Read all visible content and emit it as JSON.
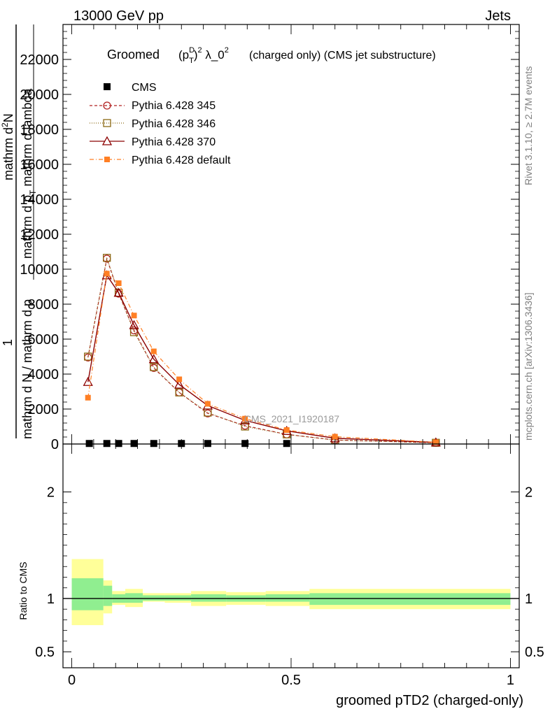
{
  "header": {
    "left": "13000 GeV pp",
    "right": "Jets"
  },
  "side_labels": {
    "rivet": "Rivet 3.1.10, ≥ 2.7M events",
    "mcplots": "mcplots.cern.ch [arXiv:1306.3436]"
  },
  "watermark": "CMS_2021_I1920187",
  "colors": {
    "data": "#000000",
    "p345": "#b22222",
    "p346": "#8b6914",
    "p370": "#8b0000",
    "pdefault": "#ff7f24",
    "band_inner": "#90ee90",
    "band_outer": "#ffff99"
  },
  "chart_data": [
    {
      "type": "line",
      "panel": "main",
      "title_prefix": "Groomed",
      "title_formula": "(p_T^D)^2 λ_0^2",
      "title_suffix": "(charged only) (CMS jet substructure)",
      "ylabel": "1 / mathrm d N / mathrm d p_T  mathrm d^2N / mathrm d p_T mathrm d lambda",
      "ylabel_parts": {
        "numerator_top": "mathrm d",
        "numerator_sup": "2",
        "numerator_rest": "N",
        "frac1_top": "1",
        "frac1_bottom": "mathrm d N / mathrm d p",
        "frac1_sub": "T",
        "frac2_bottom": "mathrm d p",
        "frac2_sub": "T",
        "frac2_rest": "mathrm d lambda"
      },
      "xlim": [
        -0.02,
        1.02
      ],
      "ylim": [
        0,
        24000
      ],
      "yticks": [
        0,
        2000,
        4000,
        6000,
        8000,
        10000,
        12000,
        14000,
        16000,
        18000,
        20000,
        22000
      ],
      "ytick_labels": [
        "0",
        "2000",
        "4000",
        "6000",
        "8000",
        "10000",
        "12000",
        "14000",
        "16000",
        "18000",
        "20000",
        "22000"
      ],
      "legend": [
        "CMS",
        "Pythia 6.428 345",
        "Pythia 6.428 346",
        "Pythia 6.428 370",
        "Pythia 6.428 default"
      ],
      "data": {
        "name": "CMS",
        "x": [
          0.04,
          0.08,
          0.107,
          0.142,
          0.187,
          0.25,
          0.31,
          0.395,
          0.49
        ],
        "y": [
          30,
          30,
          30,
          30,
          30,
          30,
          30,
          30,
          30
        ]
      },
      "series": [
        {
          "name": "Pythia 6.428 345",
          "marker": "circle",
          "dash": "4,3",
          "x": [
            0.037,
            0.08,
            0.107,
            0.142,
            0.187,
            0.245,
            0.31,
            0.395,
            0.49,
            0.6,
            0.83
          ],
          "y": [
            4950,
            10600,
            8600,
            6500,
            4350,
            2950,
            1750,
            1050,
            550,
            230,
            70
          ]
        },
        {
          "name": "Pythia 6.428 346",
          "marker": "square",
          "dash": "1,2",
          "x": [
            0.037,
            0.08,
            0.107,
            0.142,
            0.187,
            0.245,
            0.31,
            0.395,
            0.49,
            0.6,
            0.83
          ],
          "y": [
            5000,
            10650,
            8650,
            6400,
            4400,
            2950,
            1800,
            1000,
            550,
            220,
            70
          ]
        },
        {
          "name": "Pythia 6.428 370",
          "marker": "triangle",
          "dash": "",
          "x": [
            0.037,
            0.08,
            0.107,
            0.142,
            0.187,
            0.245,
            0.31,
            0.395,
            0.49,
            0.6,
            0.83
          ],
          "y": [
            3550,
            9650,
            8650,
            6800,
            4850,
            3400,
            2200,
            1350,
            750,
            330,
            90
          ]
        },
        {
          "name": "Pythia 6.428 default",
          "marker": "filled-square",
          "dash": "6,3,1,3",
          "x": [
            0.037,
            0.08,
            0.107,
            0.142,
            0.187,
            0.245,
            0.31,
            0.395,
            0.49,
            0.6,
            0.83
          ],
          "y": [
            2650,
            9750,
            9200,
            7350,
            5300,
            3700,
            2300,
            1450,
            800,
            420,
            100
          ]
        }
      ]
    },
    {
      "type": "area",
      "panel": "ratio",
      "ylabel": "Ratio to CMS",
      "xlabel": "groomed pTD2 (charged-only)",
      "xlim": [
        -0.02,
        1.02
      ],
      "ylim": [
        0.35,
        2.45
      ],
      "yticks": [
        0.5,
        1,
        2
      ],
      "ytick_labels": [
        "0.5",
        "1",
        "2"
      ],
      "xticks": [
        0,
        0.5,
        1
      ],
      "xtick_labels": [
        "0",
        "0.5",
        "1"
      ],
      "reference": 1,
      "bins": [
        {
          "lo": 0.0,
          "hi": 0.072,
          "inner": [
            0.89,
            1.19
          ],
          "outer": [
            0.75,
            1.37
          ]
        },
        {
          "lo": 0.072,
          "hi": 0.092,
          "inner": [
            0.93,
            1.12
          ],
          "outer": [
            0.86,
            1.17
          ]
        },
        {
          "lo": 0.092,
          "hi": 0.122,
          "inner": [
            0.96,
            1.04
          ],
          "outer": [
            0.94,
            1.07
          ]
        },
        {
          "lo": 0.122,
          "hi": 0.162,
          "inner": [
            0.96,
            1.05
          ],
          "outer": [
            0.92,
            1.09
          ]
        },
        {
          "lo": 0.162,
          "hi": 0.212,
          "inner": [
            0.98,
            1.03
          ],
          "outer": [
            0.97,
            1.05
          ]
        },
        {
          "lo": 0.212,
          "hi": 0.272,
          "inner": [
            0.98,
            1.03
          ],
          "outer": [
            0.96,
            1.05
          ]
        },
        {
          "lo": 0.272,
          "hi": 0.352,
          "inner": [
            0.97,
            1.04
          ],
          "outer": [
            0.93,
            1.07
          ]
        },
        {
          "lo": 0.352,
          "hi": 0.442,
          "inner": [
            0.97,
            1.03
          ],
          "outer": [
            0.94,
            1.06
          ]
        },
        {
          "lo": 0.442,
          "hi": 0.542,
          "inner": [
            0.97,
            1.04
          ],
          "outer": [
            0.93,
            1.07
          ]
        },
        {
          "lo": 0.542,
          "hi": 1.0,
          "inner": [
            0.94,
            1.05
          ],
          "outer": [
            0.9,
            1.09
          ]
        }
      ]
    }
  ]
}
